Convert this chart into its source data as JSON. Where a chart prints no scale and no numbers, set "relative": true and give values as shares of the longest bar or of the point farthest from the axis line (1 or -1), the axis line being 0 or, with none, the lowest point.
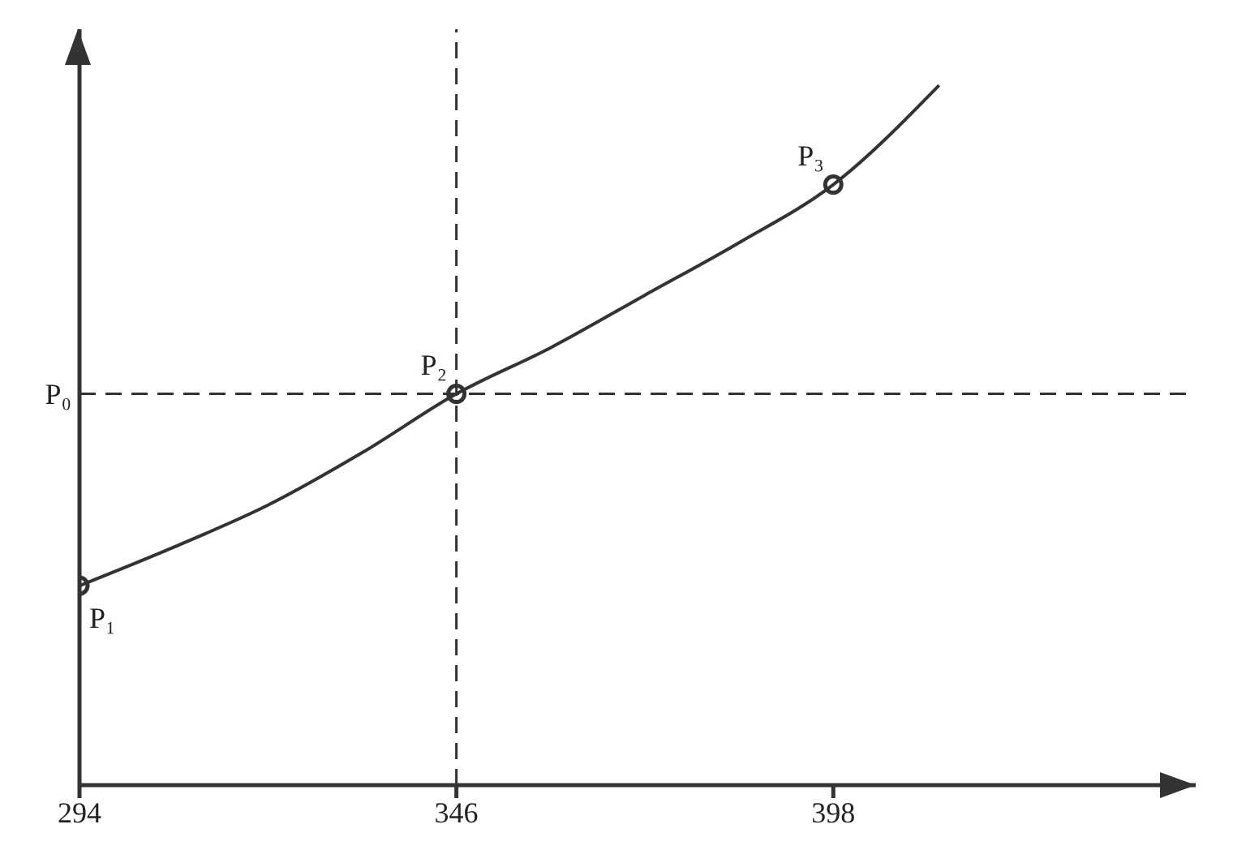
{
  "chart_data": {
    "type": "line",
    "relative": true,
    "xlim": [
      294,
      448
    ],
    "xticks": [
      294,
      346,
      398
    ],
    "grid": false,
    "legend": false,
    "series": [
      {
        "color": "#333333",
        "marker": "none",
        "x": [
          294,
          307,
          320,
          333,
          346,
          359,
          372,
          385,
          398,
          412.6
        ],
        "values": [
          0.285,
          0.34,
          0.4,
          0.475,
          0.559,
          0.625,
          0.7,
          0.775,
          0.858,
          1
        ]
      },
      {
        "type": "scatter",
        "color": "#333333",
        "marker": "circle",
        "x": [
          294,
          346,
          398
        ],
        "values": [
          0.285,
          0.559,
          0.858
        ]
      }
    ],
    "ref_lines": [
      {
        "axis": "y",
        "value": 0.559,
        "label": "P₀",
        "line_style": "dashed",
        "color": "#333333"
      },
      {
        "axis": "x",
        "value": 346,
        "line_style": "dashed",
        "color": "#333333"
      }
    ],
    "annotations": [
      {
        "text": "P₁",
        "x": 294,
        "y": 0.285
      },
      {
        "text": "P₂",
        "x": 346,
        "y": 0.559
      },
      {
        "text": "P₃",
        "x": 398,
        "y": 0.858
      }
    ]
  }
}
